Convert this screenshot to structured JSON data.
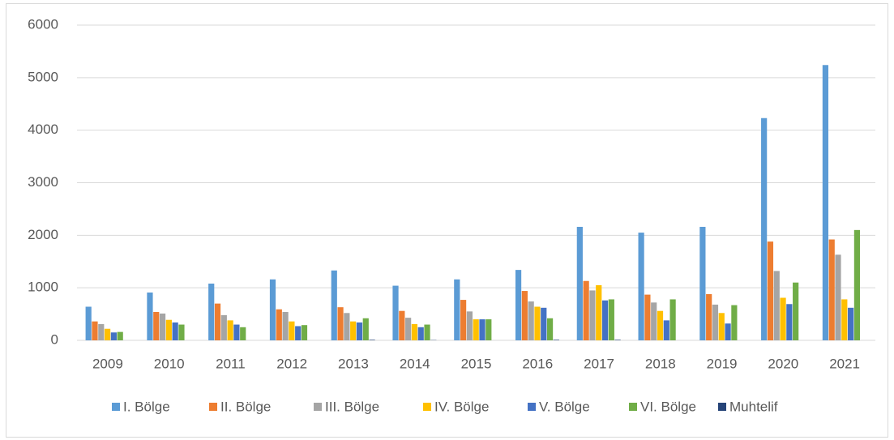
{
  "chart_data": {
    "type": "bar",
    "categories": [
      "2009",
      "2010",
      "2011",
      "2012",
      "2013",
      "2014",
      "2015",
      "2016",
      "2017",
      "2018",
      "2019",
      "2020",
      "2021"
    ],
    "series": [
      {
        "name": "I. Bölge",
        "color": "#5b9bd5",
        "values": [
          640,
          910,
          1080,
          1160,
          1330,
          1040,
          1160,
          1340,
          2160,
          2050,
          2160,
          4230,
          5240
        ]
      },
      {
        "name": "II. Bölge",
        "color": "#ed7d31",
        "values": [
          360,
          540,
          700,
          590,
          630,
          560,
          770,
          940,
          1130,
          870,
          880,
          1880,
          1920
        ]
      },
      {
        "name": "III. Bölge",
        "color": "#a5a5a5",
        "values": [
          310,
          510,
          480,
          540,
          520,
          430,
          550,
          740,
          950,
          720,
          680,
          1320,
          1630
        ]
      },
      {
        "name": "IV. Bölge",
        "color": "#ffc000",
        "values": [
          220,
          390,
          380,
          360,
          360,
          310,
          400,
          640,
          1050,
          560,
          520,
          810,
          780
        ]
      },
      {
        "name": "V. Bölge",
        "color": "#4472c4",
        "values": [
          150,
          340,
          300,
          270,
          340,
          250,
          400,
          620,
          760,
          380,
          320,
          690,
          620
        ]
      },
      {
        "name": "VI. Bölge",
        "color": "#70ad47",
        "values": [
          160,
          300,
          250,
          290,
          420,
          300,
          400,
          420,
          780,
          780,
          670,
          1100,
          2100
        ]
      },
      {
        "name": "Muhtelif",
        "color": "#264478",
        "values": [
          0,
          0,
          0,
          0,
          10,
          5,
          0,
          10,
          10,
          0,
          0,
          0,
          0
        ]
      }
    ],
    "ylim": [
      0,
      6000
    ],
    "yticks": [
      0,
      1000,
      2000,
      3000,
      4000,
      5000,
      6000
    ],
    "grid": true,
    "legend": "bottom"
  }
}
